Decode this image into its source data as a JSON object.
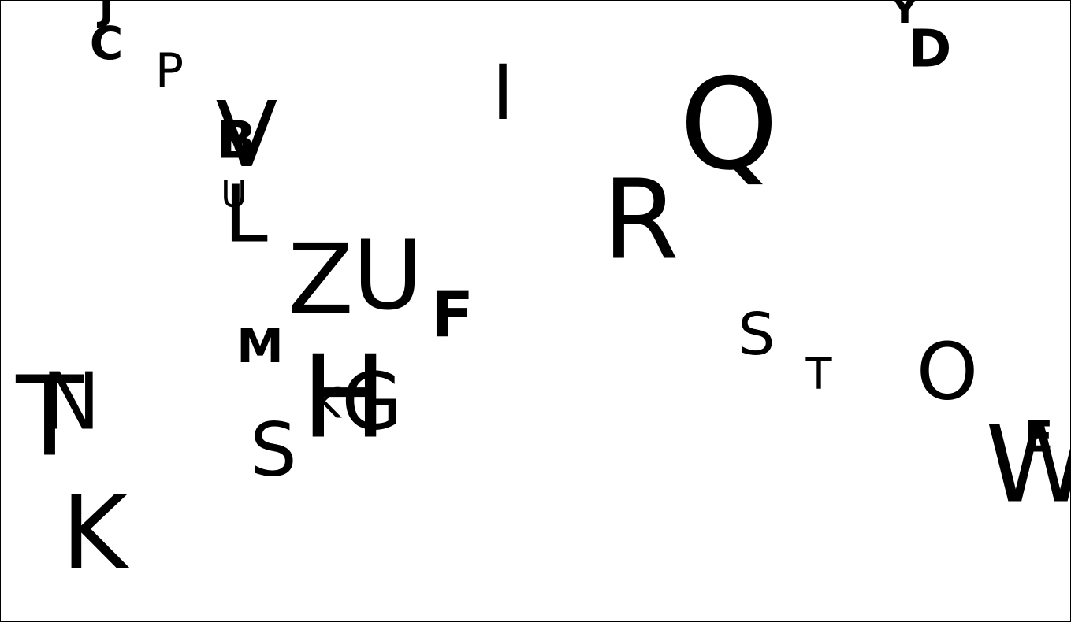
{
  "letters": [
    "J",
    "C",
    "P",
    "V",
    "B",
    "U",
    "L",
    "Z",
    "U",
    "F",
    "I",
    "Q",
    "R",
    "Y",
    "D",
    "S",
    "T",
    "O",
    "E",
    "W",
    "M",
    "T",
    "N",
    "K",
    "S",
    "H",
    "K",
    "G"
  ]
}
